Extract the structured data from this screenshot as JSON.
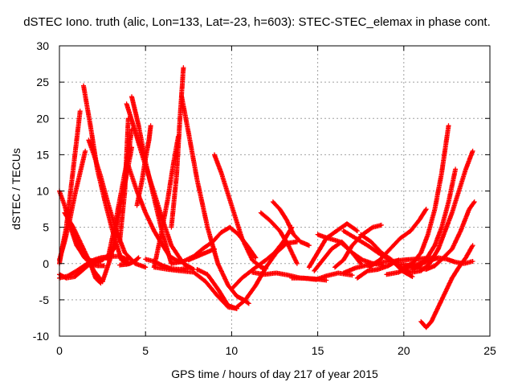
{
  "chart_data": {
    "type": "scatter",
    "title": "dSTEC Iono. truth (alic, Lon=133, Lat=-23, h=603): STEC-STEC_elemax in phase cont.",
    "xlabel": "GPS time / hours of day 217 of year 2015",
    "ylabel": "dSTEC  / TECUs",
    "xlim": [
      0,
      25
    ],
    "ylim": [
      -10,
      30
    ],
    "x_ticks": [
      0,
      5,
      10,
      15,
      20,
      25
    ],
    "y_ticks": [
      -10,
      -5,
      0,
      5,
      10,
      15,
      20,
      25,
      30
    ],
    "x_tick_labels": [
      "0",
      "5",
      "10",
      "15",
      "20",
      "25"
    ],
    "y_tick_labels": [
      "-10",
      "-5",
      "0",
      "5",
      "10",
      "15",
      "20",
      "25",
      "30"
    ],
    "grid": true,
    "marker": "plus",
    "color": "#ff0000",
    "series": [
      {
        "x": [
          0.0,
          0.15,
          0.4,
          0.6,
          0.8,
          1.0,
          1.2
        ],
        "y": [
          0.0,
          2.0,
          5.0,
          9.0,
          13.0,
          17.0,
          21.0
        ]
      },
      {
        "x": [
          0.0,
          0.3,
          0.6,
          0.9,
          1.2,
          1.5
        ],
        "y": [
          0.5,
          3.0,
          6.0,
          9.5,
          12.5,
          15.5
        ]
      },
      {
        "x": [
          0.0,
          0.3,
          0.6,
          1.0,
          1.4,
          1.8,
          2.2,
          2.6
        ],
        "y": [
          10.0,
          8.0,
          5.5,
          3.0,
          1.0,
          0.0,
          -0.3,
          -0.3
        ]
      },
      {
        "x": [
          0.3,
          0.8,
          1.4,
          2.0,
          2.5
        ],
        "y": [
          7.0,
          5.0,
          2.0,
          -1.0,
          -2.5
        ]
      },
      {
        "x": [
          0.0,
          0.4,
          0.9,
          1.3,
          1.8,
          2.4
        ],
        "y": [
          -1.5,
          -2.0,
          -1.8,
          -1.0,
          0.0,
          0.3
        ]
      },
      {
        "x": [
          0.0,
          0.5,
          1.0,
          1.5,
          2.0,
          2.4,
          3.0,
          3.5,
          4.0
        ],
        "y": [
          -2.0,
          -1.7,
          -1.0,
          -0.2,
          0.5,
          0.8,
          1.0,
          1.0,
          0.5
        ]
      },
      {
        "x": [
          0.5,
          1.0,
          1.5,
          2.0,
          2.5,
          3.0,
          3.3
        ],
        "y": [
          6.0,
          2.5,
          0.7,
          0.3,
          0.5,
          1.5,
          2.5
        ]
      },
      {
        "x": [
          1.4,
          1.8,
          2.2,
          2.7,
          3.2,
          3.6,
          4.0,
          4.4
        ],
        "y": [
          24.5,
          19.0,
          13.0,
          8.0,
          3.5,
          0.5,
          0.0,
          0.3
        ]
      },
      {
        "x": [
          1.7,
          2.0,
          2.4,
          2.8,
          3.3,
          3.8,
          4.4,
          5.0
        ],
        "y": [
          17.0,
          15.0,
          12.0,
          8.5,
          4.5,
          1.5,
          0.0,
          -0.5
        ]
      },
      {
        "x": [
          1.8,
          2.1,
          2.4
        ],
        "y": [
          0.0,
          -2.0,
          -2.7
        ]
      },
      {
        "x": [
          2.5,
          3.0,
          3.4,
          3.8,
          4.2
        ],
        "y": [
          -2.5,
          1.0,
          6.0,
          11.0,
          16.0
        ]
      },
      {
        "x": [
          2.8,
          3.2,
          3.6,
          4.0,
          4.2
        ],
        "y": [
          0.5,
          5.0,
          10.0,
          15.0,
          18.5
        ]
      },
      {
        "x": [
          3.5,
          3.9,
          4.1,
          4.4,
          4.6
        ],
        "y": [
          -0.2,
          -0.1,
          0.0,
          0.4,
          0.8
        ]
      },
      {
        "x": [
          3.5,
          3.8,
          4.0
        ],
        "y": [
          3.0,
          10.0,
          20.0
        ]
      },
      {
        "x": [
          3.9,
          4.3,
          4.8,
          5.4,
          6.0,
          6.5,
          7.2,
          7.8
        ],
        "y": [
          22.0,
          19.0,
          15.0,
          10.5,
          6.0,
          2.5,
          0.0,
          -0.8
        ]
      },
      {
        "x": [
          4.0,
          4.5,
          5.0,
          5.5,
          6.0,
          6.4,
          6.9,
          7.2
        ],
        "y": [
          13.5,
          10.0,
          7.0,
          4.5,
          2.5,
          1.0,
          0.3,
          0.2
        ]
      },
      {
        "x": [
          4.2,
          4.6,
          5.0,
          5.5,
          6.0,
          6.5
        ],
        "y": [
          23.0,
          19.0,
          14.0,
          9.0,
          4.0,
          0.0
        ]
      },
      {
        "x": [
          4.5,
          4.8,
          5.0,
          5.2,
          5.3
        ],
        "y": [
          8.0,
          11.5,
          14.5,
          17.0,
          19.0
        ]
      },
      {
        "x": [
          5.5,
          5.9,
          6.3,
          6.6,
          6.9
        ],
        "y": [
          -0.5,
          4.0,
          9.0,
          13.5,
          17.5
        ]
      },
      {
        "x": [
          5.0,
          5.5,
          6.0,
          6.5,
          7.0,
          7.5
        ],
        "y": [
          0.6,
          0.3,
          -0.3,
          -0.7,
          -0.8,
          -0.6
        ]
      },
      {
        "x": [
          6.5,
          6.8,
          7.0,
          7.2
        ],
        "y": [
          5.0,
          12.0,
          20.0,
          27.0
        ]
      },
      {
        "x": [
          7.1,
          7.5,
          8.0,
          8.6,
          9.2,
          9.8,
          10.3,
          10.7,
          11.0
        ],
        "y": [
          23.0,
          18.0,
          11.5,
          5.0,
          0.0,
          -3.0,
          -4.5,
          -5.0,
          -5.5
        ]
      },
      {
        "x": [
          9.0,
          9.4,
          10.0,
          10.6,
          11.2,
          11.7,
          12.0
        ],
        "y": [
          15.0,
          12.5,
          8.0,
          3.5,
          0.5,
          -0.5,
          -0.7
        ]
      },
      {
        "x": [
          6.5,
          7.2,
          7.8,
          8.3,
          8.9,
          9.4,
          9.9,
          10.4,
          10.9,
          11.4
        ],
        "y": [
          0.0,
          0.3,
          1.0,
          2.0,
          3.0,
          4.3,
          5.0,
          4.0,
          2.5,
          0.8
        ]
      },
      {
        "x": [
          5.5,
          6.3,
          7.0,
          7.8,
          8.5,
          9.2,
          9.8,
          10.3
        ],
        "y": [
          -0.5,
          -0.8,
          -1.0,
          -1.2,
          -2.5,
          -4.5,
          -6.0,
          -6.2
        ]
      },
      {
        "x": [
          8.0,
          8.6,
          9.2,
          9.8,
          10.3
        ],
        "y": [
          -0.8,
          -1.5,
          -3.5,
          -5.8,
          -6.2
        ]
      },
      {
        "x": [
          7.5,
          8.0,
          8.5,
          9.0
        ],
        "y": [
          0.5,
          1.0,
          1.5,
          2.0
        ]
      },
      {
        "x": [
          10.3,
          10.8,
          11.4,
          12.0,
          12.6,
          13.2,
          13.8
        ],
        "y": [
          -6.0,
          -5.0,
          -3.0,
          -0.5,
          1.5,
          2.8,
          3.0
        ]
      },
      {
        "x": [
          10.0,
          10.6,
          11.3,
          12.0,
          12.5,
          13.0,
          13.5
        ],
        "y": [
          -3.5,
          -2.0,
          -0.7,
          0.5,
          1.5,
          3.0,
          5.0
        ]
      },
      {
        "x": [
          11.7,
          12.2,
          12.8,
          13.3,
          13.8
        ],
        "y": [
          7.0,
          6.0,
          4.5,
          2.5,
          0.0
        ]
      },
      {
        "x": [
          12.4,
          12.8,
          13.2,
          13.6,
          14.0,
          14.5
        ],
        "y": [
          8.5,
          7.5,
          6.0,
          4.0,
          3.0,
          2.5
        ]
      },
      {
        "x": [
          11.2,
          11.9,
          12.6,
          13.3,
          14.0,
          14.8,
          15.5
        ],
        "y": [
          -1.2,
          -1.5,
          -1.3,
          -1.6,
          -2.0,
          -2.1,
          -2.3
        ]
      },
      {
        "x": [
          13.5,
          14.2,
          14.9,
          15.5,
          16.2,
          17.0
        ],
        "y": [
          -2.0,
          -2.0,
          -2.2,
          -1.7,
          -1.3,
          -1.6
        ]
      },
      {
        "x": [
          14.5,
          15.0,
          15.5,
          16.1,
          16.7,
          17.3
        ],
        "y": [
          -0.5,
          1.5,
          3.5,
          4.5,
          5.5,
          4.5
        ]
      },
      {
        "x": [
          14.8,
          15.3,
          15.8,
          16.4,
          17.0,
          17.5
        ],
        "y": [
          -1.0,
          0.5,
          2.0,
          3.0,
          1.5,
          0.0
        ]
      },
      {
        "x": [
          15.0,
          15.6,
          16.3,
          17.0,
          17.6,
          18.2,
          18.8
        ],
        "y": [
          4.0,
          3.5,
          3.0,
          1.5,
          0.5,
          0.0,
          -0.2
        ]
      },
      {
        "x": [
          16.0,
          16.5,
          17.0,
          17.6,
          18.2,
          18.7
        ],
        "y": [
          -0.5,
          0.5,
          2.5,
          4.0,
          5.0,
          5.3
        ]
      },
      {
        "x": [
          16.5,
          17.2,
          17.9,
          18.5,
          19.2,
          19.8,
          20.3
        ],
        "y": [
          4.5,
          3.5,
          2.5,
          1.5,
          0.5,
          -0.5,
          -1.2
        ]
      },
      {
        "x": [
          17.5,
          18.1,
          18.7,
          19.3,
          19.9,
          20.5
        ],
        "y": [
          4.0,
          3.0,
          1.5,
          0.5,
          -1.0,
          -1.8
        ]
      },
      {
        "x": [
          17.3,
          17.9,
          18.5,
          19.1,
          19.7
        ],
        "y": [
          -2.0,
          -1.0,
          -0.8,
          -0.3,
          0.5
        ]
      },
      {
        "x": [
          18.0,
          18.6,
          19.2,
          19.8,
          20.4,
          20.9,
          21.3
        ],
        "y": [
          -0.5,
          0.5,
          2.0,
          3.5,
          4.5,
          6.0,
          7.5
        ]
      },
      {
        "x": [
          16.5,
          17.2,
          17.9,
          18.6,
          19.3,
          20.0,
          20.6,
          21.2,
          21.6
        ],
        "y": [
          -1.3,
          -0.6,
          -0.2,
          0.2,
          0.3,
          0.5,
          0.6,
          0.7,
          0.8
        ]
      },
      {
        "x": [
          19.0,
          19.7,
          20.3,
          20.9,
          21.4
        ],
        "y": [
          -1.5,
          -1.2,
          -0.5,
          0.0,
          0.5
        ]
      },
      {
        "x": [
          19.5,
          20.2,
          20.8,
          21.3,
          21.8,
          22.3,
          22.8,
          23.3,
          23.8,
          24.1
        ],
        "y": [
          0.0,
          -0.2,
          -0.5,
          -0.8,
          -0.3,
          0.8,
          2.0,
          4.5,
          7.5,
          8.5
        ]
      },
      {
        "x": [
          20.0,
          20.5,
          21.0,
          21.5,
          22.0,
          22.4,
          22.8,
          23.2,
          23.6,
          24.0
        ],
        "y": [
          -1.0,
          -1.2,
          -1.0,
          0.0,
          2.0,
          4.5,
          7.0,
          10.0,
          13.0,
          15.5
        ]
      },
      {
        "x": [
          20.0,
          20.5,
          21.0,
          21.4,
          21.8,
          22.2,
          22.6
        ],
        "y": [
          -0.5,
          0.0,
          1.5,
          4.0,
          7.5,
          12.5,
          19.0
        ]
      },
      {
        "x": [
          20.5,
          21.0,
          21.4,
          21.8,
          22.2,
          22.6,
          23.0
        ],
        "y": [
          -0.8,
          -0.2,
          1.0,
          2.5,
          5.0,
          8.5,
          13.0
        ]
      },
      {
        "x": [
          21.0,
          21.3,
          21.6,
          22.0,
          22.4,
          22.8,
          23.2,
          23.6,
          24.0
        ],
        "y": [
          -8.0,
          -8.8,
          -8.0,
          -6.0,
          -4.0,
          -2.0,
          -0.5,
          0.8,
          2.5
        ]
      },
      {
        "x": [
          21.0,
          21.5,
          22.0,
          22.5,
          23.0,
          23.5,
          24.0
        ],
        "y": [
          0.0,
          0.4,
          0.8,
          0.6,
          0.2,
          0.0,
          0.3
        ]
      }
    ]
  }
}
